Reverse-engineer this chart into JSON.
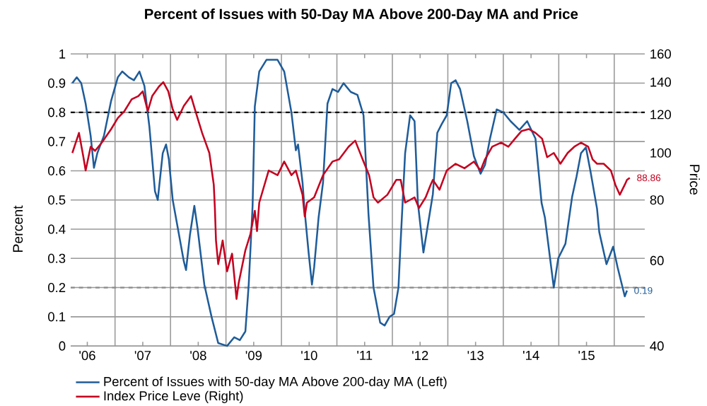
{
  "chart_data": {
    "type": "line",
    "title": "Percent of Issues with 50-Day MA Above 200-Day MA and Price",
    "ylabel": "Percent",
    "y2label": "Price",
    "xlim": [
      2005.7,
      2016.05
    ],
    "ylim": [
      0,
      1
    ],
    "y2lim": [
      40,
      160
    ],
    "log": "y2",
    "xticks": [
      {
        "value": 2006,
        "label": "'06"
      },
      {
        "value": 2007,
        "label": "'07"
      },
      {
        "value": 2008,
        "label": "'08"
      },
      {
        "value": 2009,
        "label": "'09"
      },
      {
        "value": 2010,
        "label": "'10"
      },
      {
        "value": 2011,
        "label": "'11"
      },
      {
        "value": 2012,
        "label": "'12"
      },
      {
        "value": 2013,
        "label": "'13"
      },
      {
        "value": 2014,
        "label": "'14"
      },
      {
        "value": 2015,
        "label": "'15"
      },
      {
        "value": 2006.5,
        "label": null
      },
      {
        "value": 2007.5,
        "label": null
      },
      {
        "value": 2008.5,
        "label": null
      },
      {
        "value": 2009.5,
        "label": null
      },
      {
        "value": 2010.5,
        "label": null
      },
      {
        "value": 2011.5,
        "label": null
      },
      {
        "value": 2012.5,
        "label": null
      },
      {
        "value": 2013.5,
        "label": null
      },
      {
        "value": 2014.5,
        "label": null
      },
      {
        "value": 2015.5,
        "label": null
      }
    ],
    "yticks": [
      0,
      0.1,
      0.2,
      0.3,
      0.4,
      0.5,
      0.6,
      0.7,
      0.8,
      0.9,
      1
    ],
    "y2ticks": [
      40,
      60,
      80,
      100,
      120,
      140,
      160
    ],
    "grid": true,
    "legend": "bottom",
    "ref_lines": [
      {
        "axis": "y",
        "value": 0.8,
        "color": "#000000",
        "line_style": "dashed"
      },
      {
        "axis": "y",
        "value": 0.2,
        "color": "#8c8c8c",
        "line_style": "dashed"
      }
    ],
    "series": [
      {
        "name": "Percent of Issues with 50-day MA Above 200-day MA  (Left)",
        "color": "#1f5c99",
        "axis": "y",
        "x": [
          2005.73,
          2005.81,
          2005.89,
          2005.97,
          2006.06,
          2006.12,
          2006.18,
          2006.3,
          2006.43,
          2006.55,
          2006.63,
          2006.75,
          2006.84,
          2006.94,
          2007.03,
          2007.12,
          2007.22,
          2007.27,
          2007.36,
          2007.42,
          2007.47,
          2007.54,
          2007.74,
          2007.78,
          2007.85,
          2007.93,
          2007.99,
          2008.11,
          2008.24,
          2008.36,
          2008.52,
          2008.65,
          2008.75,
          2008.85,
          2008.91,
          2008.98,
          2009.02,
          2009.1,
          2009.23,
          2009.43,
          2009.55,
          2009.68,
          2009.76,
          2009.8,
          2009.88,
          2009.92,
          2009.99,
          2010.05,
          2010.09,
          2010.17,
          2010.21,
          2010.25,
          2010.33,
          2010.42,
          2010.52,
          2010.62,
          2010.75,
          2010.87,
          2010.98,
          2011.07,
          2011.16,
          2011.28,
          2011.36,
          2011.45,
          2011.53,
          2011.61,
          2011.65,
          2011.73,
          2011.82,
          2011.9,
          2011.96,
          2012.06,
          2012.23,
          2012.31,
          2012.39,
          2012.48,
          2012.56,
          2012.64,
          2012.72,
          2012.85,
          2012.97,
          2013.09,
          2013.17,
          2013.26,
          2013.38,
          2013.5,
          2013.63,
          2013.79,
          2013.93,
          2014.08,
          2014.19,
          2014.25,
          2014.33,
          2014.41,
          2014.49,
          2014.62,
          2014.74,
          2014.82,
          2014.9,
          2014.99,
          2015.07,
          2015.19,
          2015.23,
          2015.36,
          2015.48,
          2015.56,
          2015.69,
          2015.73
        ],
        "values": [
          0.9,
          0.92,
          0.9,
          0.83,
          0.72,
          0.61,
          0.66,
          0.72,
          0.84,
          0.92,
          0.94,
          0.92,
          0.91,
          0.94,
          0.89,
          0.75,
          0.53,
          0.5,
          0.66,
          0.69,
          0.64,
          0.5,
          0.29,
          0.26,
          0.38,
          0.48,
          0.4,
          0.21,
          0.1,
          0.01,
          0,
          0.03,
          0.02,
          0.05,
          0.21,
          0.48,
          0.82,
          0.94,
          0.98,
          0.98,
          0.94,
          0.8,
          0.67,
          0.69,
          0.56,
          0.46,
          0.32,
          0.21,
          0.27,
          0.44,
          0.5,
          0.56,
          0.83,
          0.88,
          0.87,
          0.9,
          0.87,
          0.86,
          0.79,
          0.45,
          0.2,
          0.08,
          0.07,
          0.1,
          0.11,
          0.2,
          0.36,
          0.66,
          0.79,
          0.77,
          0.49,
          0.32,
          0.52,
          0.73,
          0.76,
          0.79,
          0.9,
          0.91,
          0.88,
          0.77,
          0.65,
          0.59,
          0.62,
          0.71,
          0.81,
          0.8,
          0.77,
          0.74,
          0.77,
          0.71,
          0.49,
          0.44,
          0.32,
          0.2,
          0.3,
          0.35,
          0.51,
          0.58,
          0.66,
          0.68,
          0.6,
          0.47,
          0.39,
          0.28,
          0.34,
          0.27,
          0.17,
          0.19
        ],
        "value_labels": [
          null,
          null,
          null,
          null,
          null,
          null,
          null,
          null,
          null,
          null,
          null,
          null,
          null,
          null,
          null,
          null,
          null,
          null,
          null,
          null,
          null,
          null,
          null,
          null,
          null,
          null,
          null,
          null,
          null,
          null,
          null,
          null,
          null,
          null,
          null,
          null,
          null,
          null,
          null,
          null,
          null,
          null,
          null,
          null,
          null,
          null,
          null,
          null,
          null,
          null,
          null,
          null,
          null,
          null,
          null,
          null,
          null,
          null,
          null,
          null,
          null,
          null,
          null,
          null,
          null,
          null,
          null,
          null,
          null,
          null,
          null,
          null,
          null,
          null,
          null,
          null,
          null,
          null,
          null,
          null,
          null,
          null,
          null,
          null,
          null,
          null,
          null,
          null,
          null,
          null,
          null,
          null,
          null,
          null,
          null,
          null,
          null,
          null,
          null,
          null,
          null,
          null,
          null,
          null,
          null,
          null,
          null,
          "0.19"
        ]
      },
      {
        "name": "Index Price Leve  (Right)",
        "color": "#c4001f",
        "axis": "y2",
        "x": [
          2005.73,
          2005.85,
          2005.93,
          2005.97,
          2006.06,
          2006.14,
          2006.26,
          2006.43,
          2006.55,
          2006.67,
          2006.8,
          2006.92,
          2007.0,
          2007.09,
          2007.17,
          2007.29,
          2007.37,
          2007.46,
          2007.54,
          2007.62,
          2007.74,
          2007.87,
          2007.95,
          2008.07,
          2008.2,
          2008.28,
          2008.3,
          2008.32,
          2008.36,
          2008.44,
          2008.52,
          2008.61,
          2008.69,
          2008.73,
          2008.85,
          2008.94,
          2009.02,
          2009.06,
          2009.1,
          2009.27,
          2009.43,
          2009.55,
          2009.68,
          2009.76,
          2009.88,
          2009.92,
          2009.96,
          2010.09,
          2010.25,
          2010.42,
          2010.54,
          2010.71,
          2010.83,
          2010.98,
          2011.08,
          2011.16,
          2011.24,
          2011.41,
          2011.57,
          2011.65,
          2011.73,
          2011.9,
          2011.98,
          2012.1,
          2012.19,
          2012.23,
          2012.35,
          2012.48,
          2012.64,
          2012.8,
          2012.97,
          2013.09,
          2013.17,
          2013.3,
          2013.46,
          2013.59,
          2013.71,
          2013.83,
          2013.96,
          2014.08,
          2014.2,
          2014.29,
          2014.41,
          2014.53,
          2014.66,
          2014.78,
          2014.9,
          2015.03,
          2015.11,
          2015.19,
          2015.31,
          2015.44,
          2015.52,
          2015.6,
          2015.69,
          2015.73,
          2015.78
        ],
        "values": [
          100,
          110,
          98,
          92,
          103,
          101,
          105,
          112,
          118,
          122,
          129,
          131,
          134,
          122,
          131,
          137,
          140,
          134,
          123,
          117,
          125,
          131,
          122,
          110,
          100,
          86,
          77,
          66,
          59,
          66,
          57,
          62,
          50,
          54,
          63,
          68,
          76,
          69,
          79,
          92,
          90,
          96,
          90,
          92,
          82,
          74,
          79,
          81,
          90,
          96,
          97,
          103,
          106,
          96,
          90,
          81,
          79,
          82,
          88,
          88,
          79,
          81,
          77,
          81,
          86,
          88,
          84,
          92,
          95,
          93,
          96,
          92,
          97,
          103,
          105,
          103,
          107,
          111,
          112,
          110,
          107,
          98,
          100,
          95,
          100,
          103,
          105,
          103,
          97,
          95,
          95,
          92,
          86,
          82,
          86,
          88,
          88.86
        ],
        "value_labels": [
          null,
          null,
          null,
          null,
          null,
          null,
          null,
          null,
          null,
          null,
          null,
          null,
          null,
          null,
          null,
          null,
          null,
          null,
          null,
          null,
          null,
          null,
          null,
          null,
          null,
          null,
          null,
          null,
          null,
          null,
          null,
          null,
          null,
          null,
          null,
          null,
          null,
          null,
          null,
          null,
          null,
          null,
          null,
          null,
          null,
          null,
          null,
          null,
          null,
          null,
          null,
          null,
          null,
          null,
          null,
          null,
          null,
          null,
          null,
          null,
          null,
          null,
          null,
          null,
          null,
          null,
          null,
          null,
          null,
          null,
          null,
          null,
          null,
          null,
          null,
          null,
          null,
          null,
          null,
          null,
          null,
          null,
          null,
          null,
          null,
          null,
          null,
          null,
          null,
          null,
          null,
          null,
          null,
          null,
          null,
          null,
          "88.86"
        ]
      }
    ]
  }
}
